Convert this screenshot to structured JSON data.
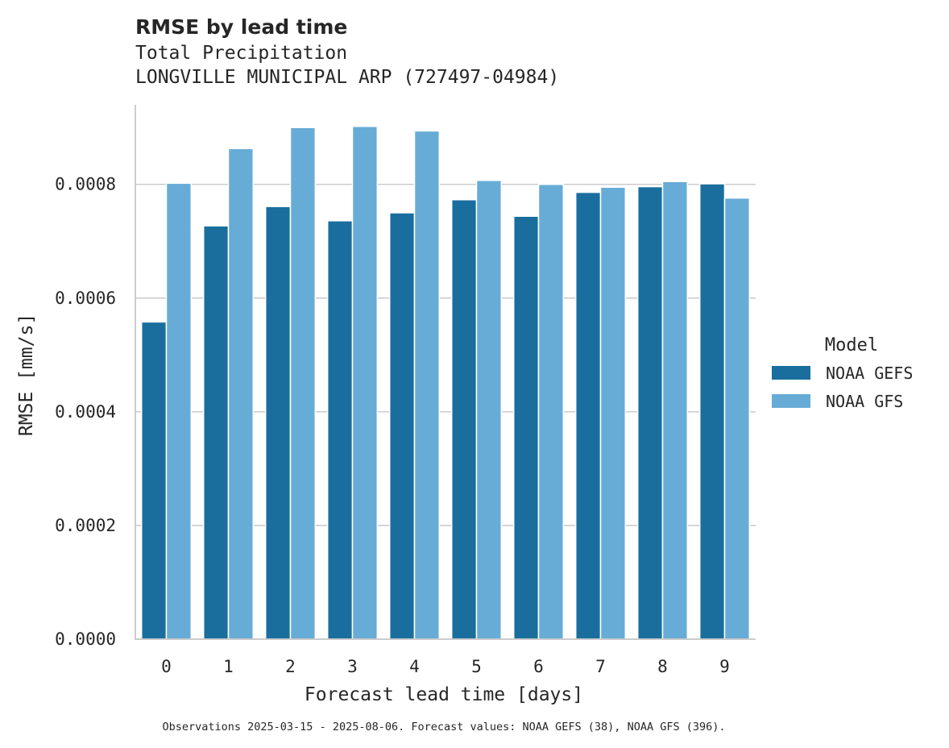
{
  "chart_data": {
    "type": "bar",
    "title": "RMSE by lead time",
    "subtitle_lines": [
      "Total Precipitation",
      "LONGVILLE MUNICIPAL ARP (727497-04984)"
    ],
    "xlabel": "Forecast lead time [days]",
    "ylabel": "RMSE [mm/s]",
    "categories": [
      "0",
      "1",
      "2",
      "3",
      "4",
      "5",
      "6",
      "7",
      "8",
      "9"
    ],
    "series": [
      {
        "name": "NOAA GEFS",
        "color": "#1a6e9e",
        "values": [
          0.000558,
          0.000727,
          0.000761,
          0.000736,
          0.00075,
          0.000773,
          0.000744,
          0.000786,
          0.000796,
          0.000801
        ]
      },
      {
        "name": "NOAA GFS",
        "color": "#67acd6",
        "values": [
          0.000802,
          0.000863,
          0.0009,
          0.000902,
          0.000894,
          0.000807,
          0.0008,
          0.000795,
          0.000805,
          0.000776
        ]
      }
    ],
    "ylim": [
      0,
      0.00094
    ],
    "yticks": [
      0.0,
      0.0002,
      0.0004,
      0.0006,
      0.0008
    ],
    "ytick_labels": [
      "0.0000",
      "0.0002",
      "0.0004",
      "0.0006",
      "0.0008"
    ],
    "grid": "horizontal",
    "legend_title": "Model",
    "legend_position": "right",
    "footnote": "Observations 2025-03-15 - 2025-08-06. Forecast values: NOAA GEFS (38), NOAA GFS (396)."
  }
}
